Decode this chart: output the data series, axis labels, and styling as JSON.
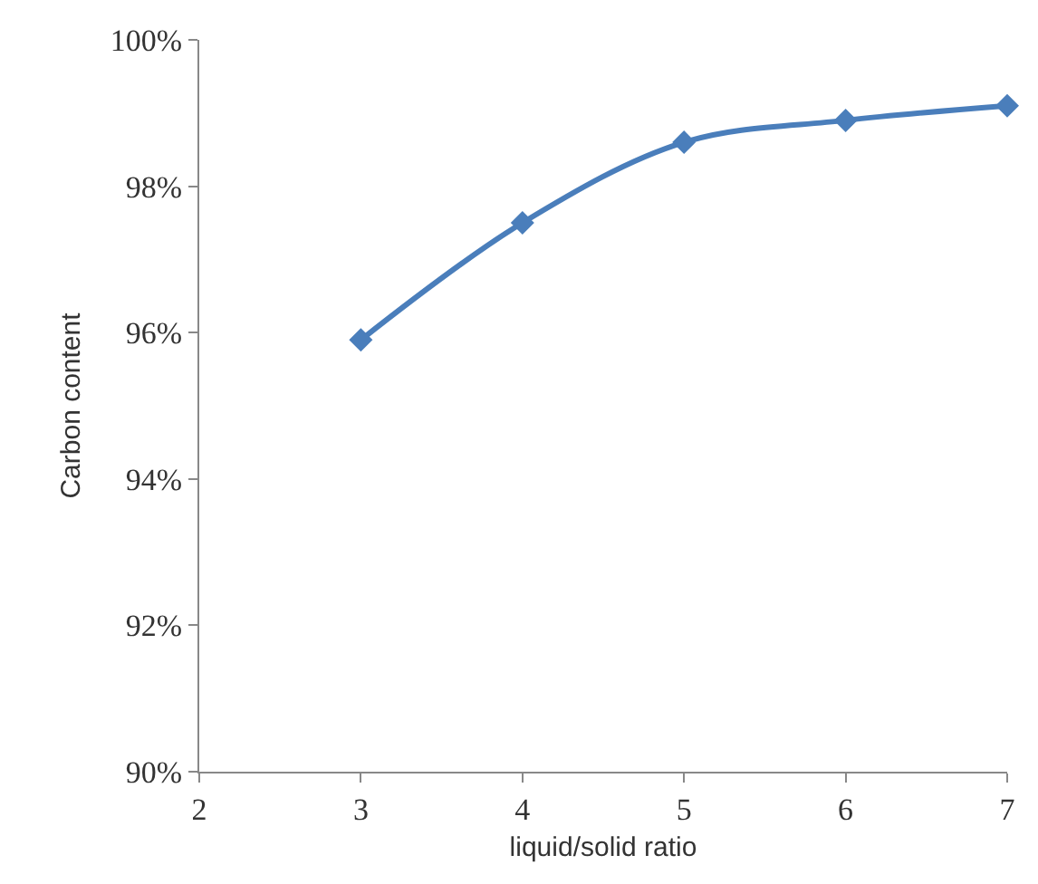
{
  "chart_data": {
    "type": "line",
    "xlabel": "liquid/solid ratio",
    "ylabel": "Carbon content",
    "x": [
      3,
      4,
      5,
      6,
      7
    ],
    "series": [
      {
        "color": "#4a7ebb",
        "values": [
          95.9,
          97.5,
          98.6,
          98.9,
          99.1
        ]
      }
    ],
    "xlim": [
      2,
      7
    ],
    "xticks": [
      2,
      3,
      4,
      5,
      6,
      7
    ],
    "ylim": [
      90,
      100
    ],
    "yticks": [
      {
        "value": 90,
        "label": "90%"
      },
      {
        "value": 92,
        "label": "92%"
      },
      {
        "value": 94,
        "label": "94%"
      },
      {
        "value": 96,
        "label": "96%"
      },
      {
        "value": 98,
        "label": "98%"
      },
      {
        "value": 100,
        "label": "100%"
      }
    ],
    "marker": "diamond",
    "line_style": "solid"
  }
}
